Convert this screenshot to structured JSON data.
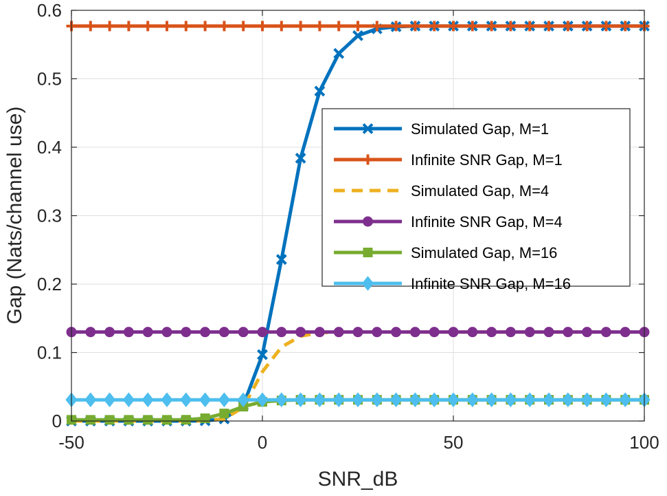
{
  "chart_data": {
    "type": "line",
    "title": "",
    "xlabel": "SNR_dB",
    "ylabel": "Gap (Nats/channel use)",
    "xlim": [
      -50,
      100
    ],
    "ylim": [
      0,
      0.6
    ],
    "xticks": [
      -50,
      0,
      50,
      100
    ],
    "yticks": [
      0,
      0.1,
      0.2,
      0.3,
      0.4,
      0.5,
      0.6
    ],
    "xtick_labels": [
      "-50",
      "0",
      "50",
      "100"
    ],
    "ytick_labels": [
      "0",
      "0.1",
      "0.2",
      "0.3",
      "0.4",
      "0.5",
      "0.6"
    ],
    "grid": true,
    "legend_position": "upper-right-inside",
    "x": [
      -50,
      -45,
      -40,
      -35,
      -30,
      -25,
      -20,
      -15,
      -10,
      -5,
      0,
      5,
      10,
      15,
      20,
      25,
      30,
      35,
      40,
      45,
      50,
      55,
      60,
      65,
      70,
      75,
      80,
      85,
      90,
      95,
      100
    ],
    "series": [
      {
        "name": "Simulated Gap, M=1",
        "color": "#0072BD",
        "style": "solid",
        "marker": "x",
        "values": [
          0,
          0,
          0,
          0,
          0,
          0,
          0,
          0.0004,
          0.003,
          0.023,
          0.097,
          0.236,
          0.384,
          0.482,
          0.537,
          0.563,
          0.573,
          0.576,
          0.577,
          0.577,
          0.577,
          0.577,
          0.577,
          0.577,
          0.577,
          0.577,
          0.577,
          0.577,
          0.577,
          0.577,
          0.577
        ]
      },
      {
        "name": "Infinite SNR Gap, M=1",
        "color": "#D95319",
        "style": "solid",
        "marker": "+",
        "values": [
          0.577,
          0.577,
          0.577,
          0.577,
          0.577,
          0.577,
          0.577,
          0.577,
          0.577,
          0.577,
          0.577,
          0.577,
          0.577,
          0.577,
          0.577,
          0.577,
          0.577,
          0.577,
          0.577,
          0.577,
          0.577,
          0.577,
          0.577,
          0.577,
          0.577,
          0.577,
          0.577,
          0.577,
          0.577,
          0.577,
          0.577
        ]
      },
      {
        "name": "Simulated Gap, M=4",
        "color": "#EDB120",
        "style": "dashed",
        "marker": "none",
        "values": [
          0,
          0,
          0,
          0,
          0,
          0,
          0,
          0.0003,
          0.003,
          0.02,
          0.072,
          0.108,
          0.124,
          0.129,
          0.13,
          0.13,
          0.13,
          0.13,
          0.13,
          0.13,
          0.13,
          0.13,
          0.13,
          0.13,
          0.13,
          0.13,
          0.13,
          0.13,
          0.13,
          0.13,
          0.13
        ]
      },
      {
        "name": "Infinite SNR Gap, M=4",
        "color": "#7E2F8E",
        "style": "solid",
        "marker": "o",
        "values": [
          0.13,
          0.13,
          0.13,
          0.13,
          0.13,
          0.13,
          0.13,
          0.13,
          0.13,
          0.13,
          0.13,
          0.13,
          0.13,
          0.13,
          0.13,
          0.13,
          0.13,
          0.13,
          0.13,
          0.13,
          0.13,
          0.13,
          0.13,
          0.13,
          0.13,
          0.13,
          0.13,
          0.13,
          0.13,
          0.13,
          0.13
        ]
      },
      {
        "name": "Simulated Gap, M=16",
        "color": "#77AC30",
        "style": "solid",
        "marker": "s",
        "values": [
          0.0017,
          0.0017,
          0.0017,
          0.0017,
          0.0017,
          0.0017,
          0.0018,
          0.004,
          0.011,
          0.021,
          0.028,
          0.03,
          0.031,
          0.031,
          0.031,
          0.031,
          0.031,
          0.031,
          0.031,
          0.031,
          0.031,
          0.031,
          0.031,
          0.031,
          0.031,
          0.031,
          0.031,
          0.031,
          0.031,
          0.031,
          0.031
        ]
      },
      {
        "name": "Infinite SNR Gap, M=16",
        "color": "#4DBEEE",
        "style": "solid",
        "marker": "d",
        "values": [
          0.031,
          0.031,
          0.031,
          0.031,
          0.031,
          0.031,
          0.031,
          0.031,
          0.031,
          0.031,
          0.031,
          0.031,
          0.031,
          0.031,
          0.031,
          0.031,
          0.031,
          0.031,
          0.031,
          0.031,
          0.031,
          0.031,
          0.031,
          0.031,
          0.031,
          0.031,
          0.031,
          0.031,
          0.031,
          0.031,
          0.031
        ]
      }
    ]
  }
}
